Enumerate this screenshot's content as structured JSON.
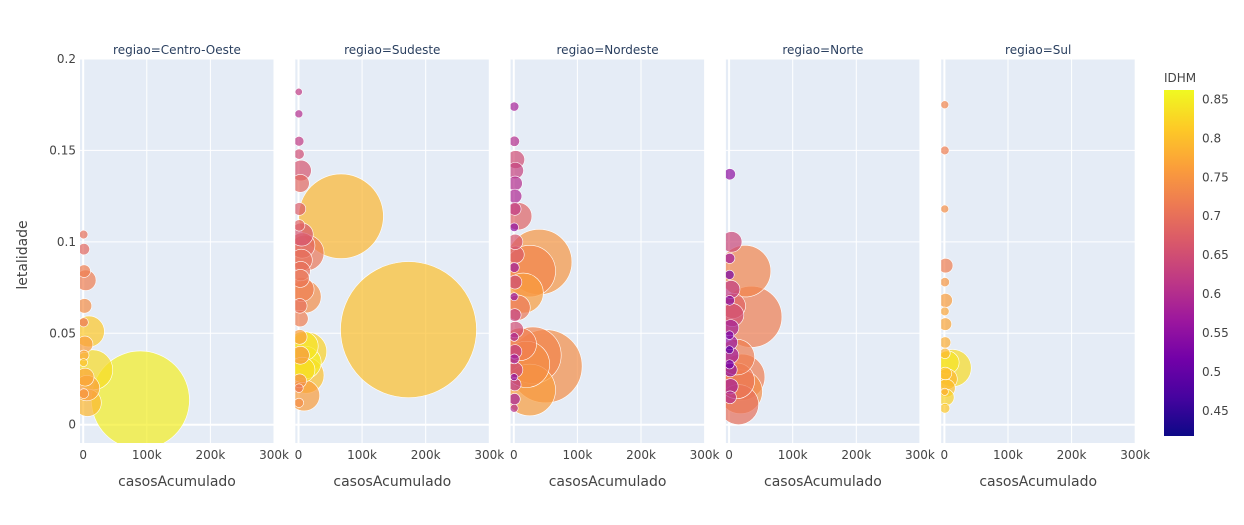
{
  "chart_data": {
    "type": "scatter",
    "ylabel": "letalidade",
    "xlabel": "casosAcumulado",
    "ylim": [
      -0.01,
      0.2
    ],
    "xlim": [
      -5000,
      300000
    ],
    "yticks": [
      {
        "v": 0,
        "label": "0"
      },
      {
        "v": 0.05,
        "label": "0.05"
      },
      {
        "v": 0.1,
        "label": "0.1"
      },
      {
        "v": 0.15,
        "label": "0.15"
      },
      {
        "v": 0.2,
        "label": "0.2"
      }
    ],
    "xticks": [
      {
        "v": 0,
        "label": "0"
      },
      {
        "v": 100000,
        "label": "100k"
      },
      {
        "v": 200000,
        "label": "200k"
      },
      {
        "v": 300000,
        "label": "300k"
      }
    ],
    "grid": true,
    "colorbar": {
      "title": "IDHM",
      "min": 0.418,
      "max": 0.862,
      "ticks": [
        {
          "v": 0.45,
          "label": "0.45"
        },
        {
          "v": 0.5,
          "label": "0.5"
        },
        {
          "v": 0.55,
          "label": "0.55"
        },
        {
          "v": 0.6,
          "label": "0.6"
        },
        {
          "v": 0.65,
          "label": "0.65"
        },
        {
          "v": 0.7,
          "label": "0.7"
        },
        {
          "v": 0.75,
          "label": "0.75"
        },
        {
          "v": 0.8,
          "label": "0.8"
        },
        {
          "v": 0.85,
          "label": "0.85"
        }
      ],
      "scale": [
        "#0d0887",
        "#46039f",
        "#7201a8",
        "#9c179e",
        "#bd3786",
        "#d8576b",
        "#ed7953",
        "#fb9f3a",
        "#fdca26",
        "#f0f921"
      ]
    },
    "panels": [
      {
        "title": "regiao=Centro-Oeste",
        "points": [
          {
            "x": 90000,
            "y": 0.0135,
            "idhm": 0.85
          },
          {
            "x": 15000,
            "y": 0.03,
            "idhm": 0.83
          },
          {
            "x": 9000,
            "y": 0.051,
            "idhm": 0.81
          },
          {
            "x": 4000,
            "y": 0.079,
            "idhm": 0.72
          },
          {
            "x": 6000,
            "y": 0.02,
            "idhm": 0.76
          },
          {
            "x": 7000,
            "y": 0.012,
            "idhm": 0.79
          },
          {
            "x": 3000,
            "y": 0.026,
            "idhm": 0.77
          },
          {
            "x": 2500,
            "y": 0.044,
            "idhm": 0.76
          },
          {
            "x": 2000,
            "y": 0.065,
            "idhm": 0.74
          },
          {
            "x": 1500,
            "y": 0.084,
            "idhm": 0.72
          },
          {
            "x": 1200,
            "y": 0.096,
            "idhm": 0.69
          },
          {
            "x": 1000,
            "y": 0.038,
            "idhm": 0.77
          },
          {
            "x": 900,
            "y": 0.017,
            "idhm": 0.75
          },
          {
            "x": 800,
            "y": 0.056,
            "idhm": 0.71
          },
          {
            "x": 700,
            "y": 0.104,
            "idhm": 0.7
          },
          {
            "x": 600,
            "y": 0.034,
            "idhm": 0.8
          }
        ]
      },
      {
        "title": "regiao=Sudeste",
        "points": [
          {
            "x": 67000,
            "y": 0.114,
            "idhm": 0.79
          },
          {
            "x": 173000,
            "y": 0.052,
            "idhm": 0.8
          },
          {
            "x": 12000,
            "y": 0.094,
            "idhm": 0.71
          },
          {
            "x": 14000,
            "y": 0.04,
            "idhm": 0.82
          },
          {
            "x": 10000,
            "y": 0.07,
            "idhm": 0.74
          },
          {
            "x": 8000,
            "y": 0.043,
            "idhm": 0.84
          },
          {
            "x": 12000,
            "y": 0.027,
            "idhm": 0.8
          },
          {
            "x": 10000,
            "y": 0.034,
            "idhm": 0.85
          },
          {
            "x": 6000,
            "y": 0.03,
            "idhm": 0.83
          },
          {
            "x": 9000,
            "y": 0.016,
            "idhm": 0.76
          },
          {
            "x": 4000,
            "y": 0.139,
            "idhm": 0.66
          },
          {
            "x": 3000,
            "y": 0.132,
            "idhm": 0.69
          },
          {
            "x": 5000,
            "y": 0.104,
            "idhm": 0.66
          },
          {
            "x": 6000,
            "y": 0.098,
            "idhm": 0.69
          },
          {
            "x": 4500,
            "y": 0.09,
            "idhm": 0.7
          },
          {
            "x": 3500,
            "y": 0.084,
            "idhm": 0.7
          },
          {
            "x": 3000,
            "y": 0.08,
            "idhm": 0.71
          },
          {
            "x": 5500,
            "y": 0.074,
            "idhm": 0.72
          },
          {
            "x": 2000,
            "y": 0.065,
            "idhm": 0.7
          },
          {
            "x": 2500,
            "y": 0.058,
            "idhm": 0.72
          },
          {
            "x": 2000,
            "y": 0.048,
            "idhm": 0.76
          },
          {
            "x": 3000,
            "y": 0.038,
            "idhm": 0.75
          },
          {
            "x": 1800,
            "y": 0.024,
            "idhm": 0.74
          },
          {
            "x": 1500,
            "y": 0.118,
            "idhm": 0.67
          },
          {
            "x": 1200,
            "y": 0.109,
            "idhm": 0.68
          },
          {
            "x": 1000,
            "y": 0.148,
            "idhm": 0.65
          },
          {
            "x": 900,
            "y": 0.155,
            "idhm": 0.62
          },
          {
            "x": 800,
            "y": 0.012,
            "idhm": 0.74
          },
          {
            "x": 700,
            "y": 0.02,
            "idhm": 0.71
          },
          {
            "x": 600,
            "y": 0.17,
            "idhm": 0.6
          },
          {
            "x": 500,
            "y": 0.182,
            "idhm": 0.62
          }
        ]
      },
      {
        "title": "regiao=Nordeste",
        "points": [
          {
            "x": 40000,
            "y": 0.089,
            "idhm": 0.75
          },
          {
            "x": 25000,
            "y": 0.084,
            "idhm": 0.73
          },
          {
            "x": 15000,
            "y": 0.072,
            "idhm": 0.76
          },
          {
            "x": 50000,
            "y": 0.032,
            "idhm": 0.74
          },
          {
            "x": 30000,
            "y": 0.038,
            "idhm": 0.73
          },
          {
            "x": 20000,
            "y": 0.033,
            "idhm": 0.74
          },
          {
            "x": 25000,
            "y": 0.019,
            "idhm": 0.76
          },
          {
            "x": 7000,
            "y": 0.114,
            "idhm": 0.68
          },
          {
            "x": 10000,
            "y": 0.044,
            "idhm": 0.72
          },
          {
            "x": 6000,
            "y": 0.064,
            "idhm": 0.71
          },
          {
            "x": 3000,
            "y": 0.145,
            "idhm": 0.65
          },
          {
            "x": 2500,
            "y": 0.139,
            "idhm": 0.63
          },
          {
            "x": 2000,
            "y": 0.132,
            "idhm": 0.6
          },
          {
            "x": 1800,
            "y": 0.125,
            "idhm": 0.59
          },
          {
            "x": 1500,
            "y": 0.118,
            "idhm": 0.62
          },
          {
            "x": 2200,
            "y": 0.1,
            "idhm": 0.66
          },
          {
            "x": 2800,
            "y": 0.093,
            "idhm": 0.67
          },
          {
            "x": 1800,
            "y": 0.078,
            "idhm": 0.64
          },
          {
            "x": 1500,
            "y": 0.06,
            "idhm": 0.63
          },
          {
            "x": 2500,
            "y": 0.052,
            "idhm": 0.65
          },
          {
            "x": 1800,
            "y": 0.04,
            "idhm": 0.62
          },
          {
            "x": 2200,
            "y": 0.03,
            "idhm": 0.64
          },
          {
            "x": 1500,
            "y": 0.022,
            "idhm": 0.61
          },
          {
            "x": 1200,
            "y": 0.014,
            "idhm": 0.58
          },
          {
            "x": 1000,
            "y": 0.155,
            "idhm": 0.6
          },
          {
            "x": 800,
            "y": 0.174,
            "idhm": 0.58
          },
          {
            "x": 700,
            "y": 0.108,
            "idhm": 0.55
          },
          {
            "x": 900,
            "y": 0.086,
            "idhm": 0.57
          },
          {
            "x": 600,
            "y": 0.07,
            "idhm": 0.56
          },
          {
            "x": 700,
            "y": 0.048,
            "idhm": 0.59
          },
          {
            "x": 900,
            "y": 0.036,
            "idhm": 0.57
          },
          {
            "x": 500,
            "y": 0.026,
            "idhm": 0.55
          },
          {
            "x": 600,
            "y": 0.009,
            "idhm": 0.6
          }
        ]
      },
      {
        "title": "regiao=Norte",
        "points": [
          {
            "x": 25000,
            "y": 0.084,
            "idhm": 0.73
          },
          {
            "x": 35000,
            "y": 0.059,
            "idhm": 0.72
          },
          {
            "x": 20000,
            "y": 0.026,
            "idhm": 0.72
          },
          {
            "x": 18000,
            "y": 0.018,
            "idhm": 0.74
          },
          {
            "x": 12000,
            "y": 0.024,
            "idhm": 0.71
          },
          {
            "x": 15000,
            "y": 0.011,
            "idhm": 0.7
          },
          {
            "x": 12000,
            "y": 0.037,
            "idhm": 0.72
          },
          {
            "x": 6000,
            "y": 0.065,
            "idhm": 0.68
          },
          {
            "x": 4000,
            "y": 0.1,
            "idhm": 0.64
          },
          {
            "x": 5000,
            "y": 0.06,
            "idhm": 0.65
          },
          {
            "x": 3000,
            "y": 0.074,
            "idhm": 0.62
          },
          {
            "x": 2500,
            "y": 0.053,
            "idhm": 0.58
          },
          {
            "x": 2000,
            "y": 0.045,
            "idhm": 0.56
          },
          {
            "x": 2500,
            "y": 0.038,
            "idhm": 0.57
          },
          {
            "x": 1800,
            "y": 0.03,
            "idhm": 0.55
          },
          {
            "x": 2200,
            "y": 0.021,
            "idhm": 0.58
          },
          {
            "x": 1500,
            "y": 0.015,
            "idhm": 0.6
          },
          {
            "x": 1200,
            "y": 0.137,
            "idhm": 0.55
          },
          {
            "x": 1000,
            "y": 0.091,
            "idhm": 0.57
          },
          {
            "x": 800,
            "y": 0.082,
            "idhm": 0.52
          },
          {
            "x": 900,
            "y": 0.068,
            "idhm": 0.54
          },
          {
            "x": 700,
            "y": 0.049,
            "idhm": 0.53
          },
          {
            "x": 600,
            "y": 0.041,
            "idhm": 0.5
          },
          {
            "x": 800,
            "y": 0.033,
            "idhm": 0.52
          }
        ]
      },
      {
        "title": "regiao=Sul",
        "points": [
          {
            "x": 13000,
            "y": 0.031,
            "idhm": 0.83
          },
          {
            "x": 5000,
            "y": 0.034,
            "idhm": 0.84
          },
          {
            "x": 4000,
            "y": 0.025,
            "idhm": 0.79
          },
          {
            "x": 3000,
            "y": 0.02,
            "idhm": 0.8
          },
          {
            "x": 2500,
            "y": 0.015,
            "idhm": 0.82
          },
          {
            "x": 2000,
            "y": 0.087,
            "idhm": 0.72
          },
          {
            "x": 1800,
            "y": 0.068,
            "idhm": 0.76
          },
          {
            "x": 1500,
            "y": 0.055,
            "idhm": 0.77
          },
          {
            "x": 1200,
            "y": 0.045,
            "idhm": 0.78
          },
          {
            "x": 1000,
            "y": 0.039,
            "idhm": 0.79
          },
          {
            "x": 1500,
            "y": 0.028,
            "idhm": 0.8
          },
          {
            "x": 900,
            "y": 0.009,
            "idhm": 0.81
          },
          {
            "x": 700,
            "y": 0.15,
            "idhm": 0.72
          },
          {
            "x": 600,
            "y": 0.118,
            "idhm": 0.74
          },
          {
            "x": 800,
            "y": 0.078,
            "idhm": 0.75
          },
          {
            "x": 700,
            "y": 0.062,
            "idhm": 0.77
          },
          {
            "x": 600,
            "y": 0.175,
            "idhm": 0.73
          },
          {
            "x": 500,
            "y": 0.018,
            "idhm": 0.78
          }
        ]
      }
    ]
  }
}
